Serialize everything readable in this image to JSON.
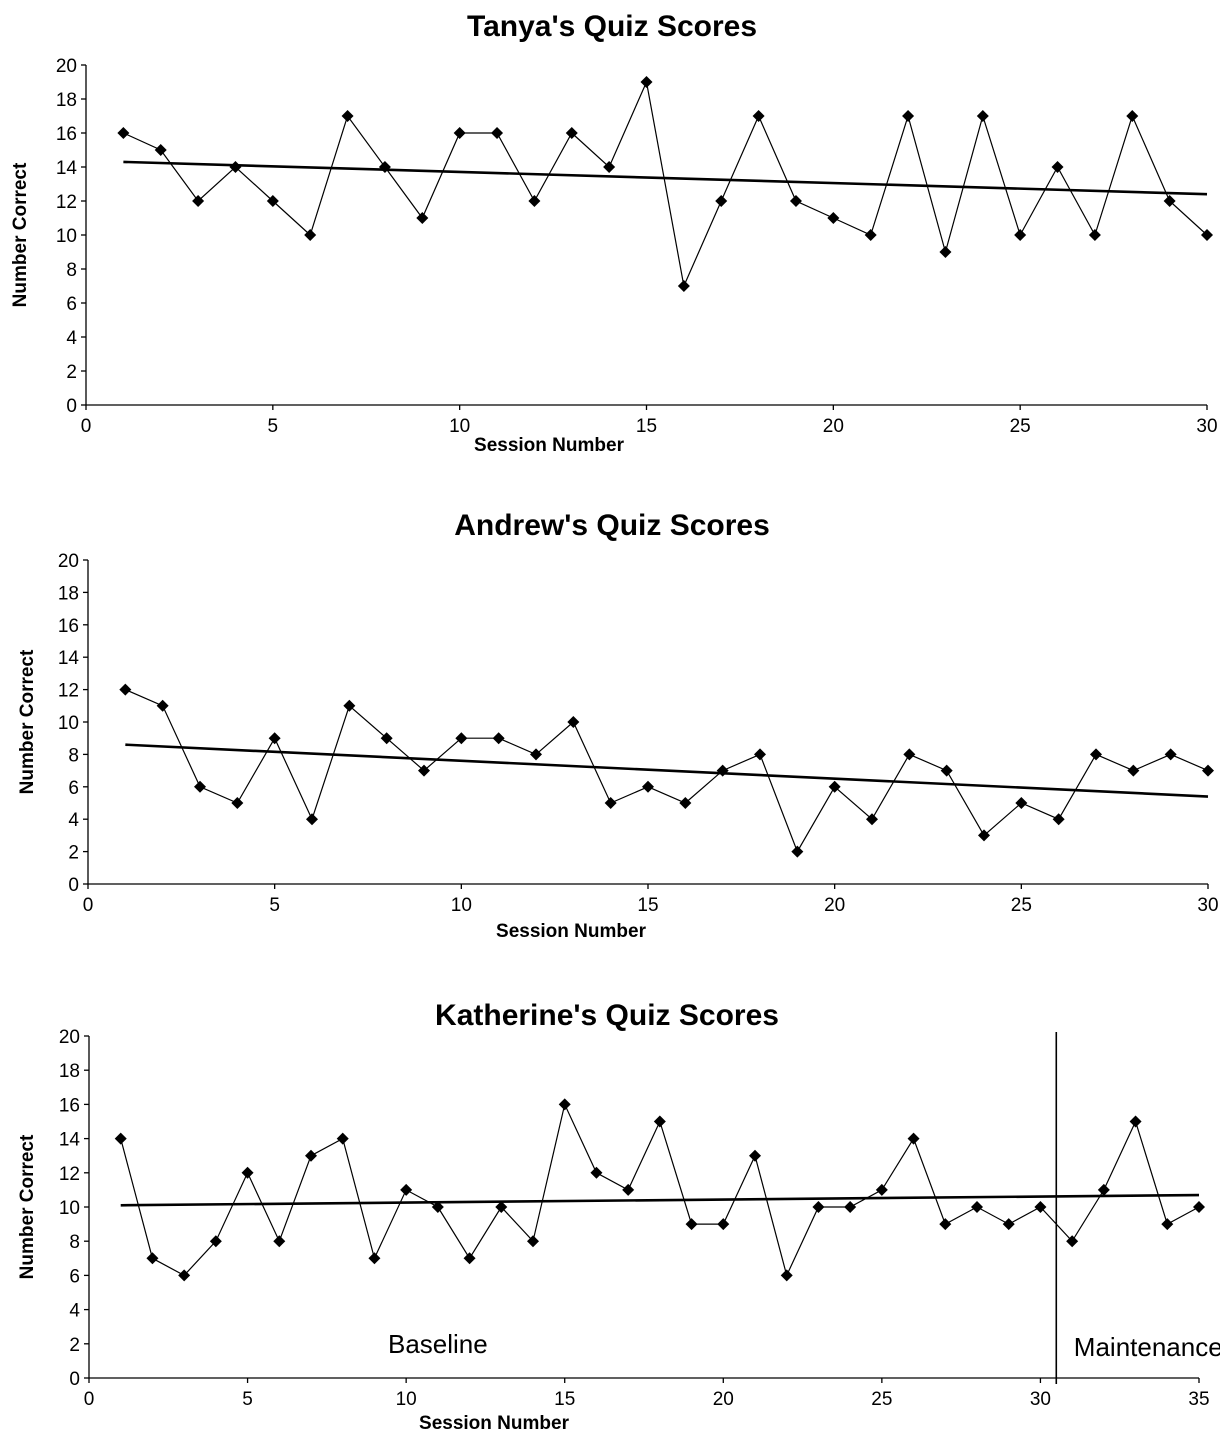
{
  "chart_data": [
    {
      "type": "line",
      "title": "Tanya's Quiz Scores",
      "xlabel": "Session Number",
      "ylabel": "Number Correct",
      "xlim": [
        0,
        30
      ],
      "ylim": [
        0,
        20
      ],
      "x_ticks": [
        0,
        5,
        10,
        15,
        20,
        25,
        30
      ],
      "y_ticks": [
        0,
        2,
        4,
        6,
        8,
        10,
        12,
        14,
        16,
        18,
        20
      ],
      "grid": false,
      "series": [
        {
          "x": [
            1,
            2,
            3,
            4,
            5,
            6,
            7,
            8,
            9,
            10,
            11,
            12,
            13,
            14,
            15,
            16,
            17,
            18,
            19,
            20,
            21,
            22,
            23,
            24,
            25,
            26,
            27,
            28,
            29,
            30
          ],
          "values": [
            16,
            15,
            12,
            14,
            12,
            10,
            17,
            14,
            11,
            16,
            16,
            12,
            16,
            14,
            19,
            7,
            12,
            17,
            12,
            11,
            10,
            17,
            9,
            17,
            10,
            14,
            10,
            17,
            12,
            10
          ],
          "marker": "diamond"
        }
      ],
      "trendline": {
        "x": [
          1,
          30
        ],
        "y": [
          14.3,
          12.4
        ]
      }
    },
    {
      "type": "line",
      "title": "Andrew's Quiz Scores",
      "xlabel": "Session Number",
      "ylabel": "Number Correct",
      "xlim": [
        0,
        30
      ],
      "ylim": [
        0,
        20
      ],
      "x_ticks": [
        0,
        5,
        10,
        15,
        20,
        25,
        30
      ],
      "y_ticks": [
        0,
        2,
        4,
        6,
        8,
        10,
        12,
        14,
        16,
        18,
        20
      ],
      "grid": false,
      "series": [
        {
          "x": [
            1,
            2,
            3,
            4,
            5,
            6,
            7,
            8,
            9,
            10,
            11,
            12,
            13,
            14,
            15,
            16,
            17,
            18,
            19,
            20,
            21,
            22,
            23,
            24,
            25,
            26,
            27,
            28,
            29,
            30
          ],
          "values": [
            12,
            11,
            6,
            5,
            9,
            4,
            11,
            9,
            7,
            9,
            9,
            8,
            10,
            5,
            6,
            5,
            7,
            8,
            2,
            6,
            4,
            8,
            7,
            3,
            5,
            4,
            8,
            7,
            8,
            7
          ],
          "marker": "diamond"
        }
      ],
      "trendline": {
        "x": [
          1,
          30
        ],
        "y": [
          8.6,
          5.4
        ]
      }
    },
    {
      "type": "line",
      "title": "Katherine's Quiz Scores",
      "xlabel": "Session Number",
      "ylabel": "Number Correct",
      "xlim": [
        0,
        35
      ],
      "ylim": [
        0,
        20
      ],
      "x_ticks": [
        0,
        5,
        10,
        15,
        20,
        25,
        30,
        35
      ],
      "y_ticks": [
        0,
        2,
        4,
        6,
        8,
        10,
        12,
        14,
        16,
        18,
        20
      ],
      "grid": false,
      "series": [
        {
          "x": [
            1,
            2,
            3,
            4,
            5,
            6,
            7,
            8,
            9,
            10,
            11,
            12,
            13,
            14,
            15,
            16,
            17,
            18,
            19,
            20,
            21,
            22,
            23,
            24,
            25,
            26,
            27,
            28,
            29,
            30,
            31,
            32,
            33,
            34,
            35
          ],
          "values": [
            14,
            7,
            6,
            8,
            12,
            8,
            13,
            14,
            7,
            11,
            10,
            7,
            10,
            8,
            16,
            12,
            11,
            15,
            9,
            9,
            13,
            6,
            10,
            10,
            11,
            14,
            9,
            10,
            9,
            10,
            8,
            11,
            15,
            9,
            10
          ],
          "marker": "diamond"
        }
      ],
      "trendline": {
        "x": [
          1,
          35
        ],
        "y": [
          10.1,
          10.7
        ]
      },
      "phase_change": {
        "x": 30.5
      },
      "annotations": [
        {
          "text": "Baseline",
          "x": 11,
          "y": 2
        },
        {
          "text": "Maintenance",
          "x": 33.4,
          "y": 1.8
        }
      ]
    }
  ]
}
